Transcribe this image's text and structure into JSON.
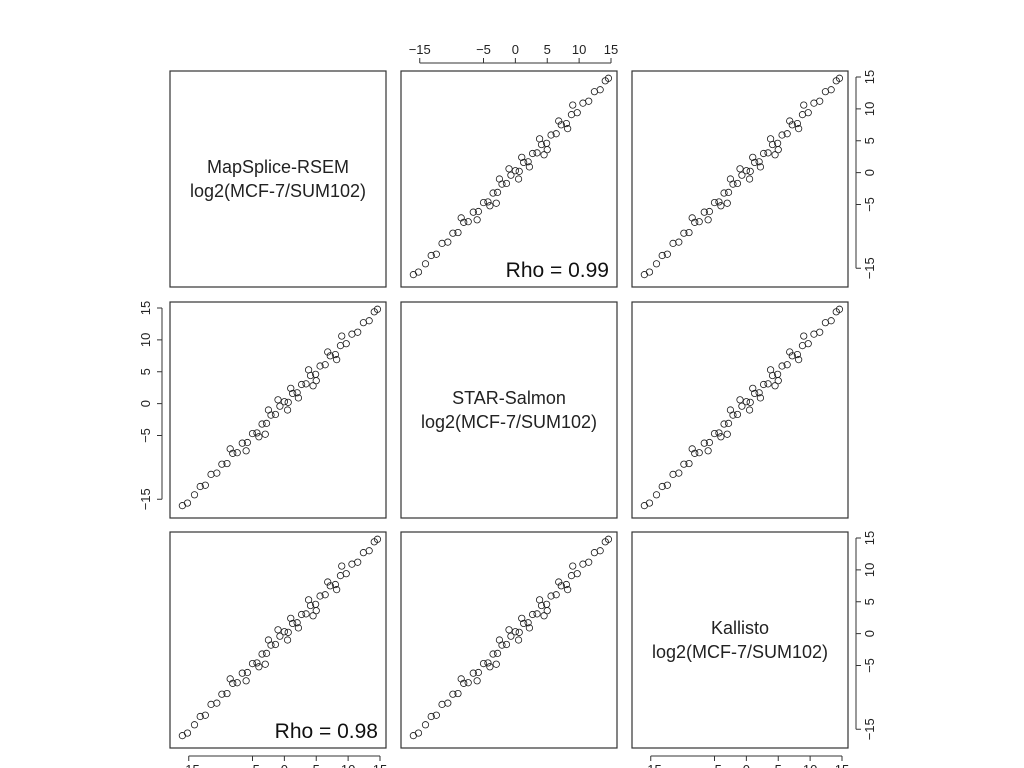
{
  "chart_data": {
    "type": "scatter",
    "layout": "pairs-matrix",
    "variables": [
      {
        "name": "MapSplice-RSEM",
        "unit": "log2(MCF-7/SUM102)"
      },
      {
        "name": "STAR-Salmon",
        "unit": "log2(MCF-7/SUM102)"
      },
      {
        "name": "Kallisto",
        "unit": "log2(MCF-7/SUM102)"
      }
    ],
    "axis_range": [
      -17,
      15
    ],
    "ticks": [
      -15,
      -5,
      0,
      5,
      10,
      15
    ],
    "tick_labels": [
      "−15",
      "−5",
      "0",
      "5",
      "10",
      "15"
    ],
    "correlations": [
      {
        "x": "STAR-Salmon",
        "y": "MapSplice-RSEM",
        "label": "Rho = 0.99"
      },
      {
        "x": "MapSplice-RSEM",
        "y": "Kallisto",
        "label": "Rho = 0.98"
      }
    ],
    "scatter_points": [
      [
        -16,
        -16
      ],
      [
        -15.2,
        -15.6
      ],
      [
        -14.1,
        -14.3
      ],
      [
        -13.2,
        -13.0
      ],
      [
        -12.4,
        -12.8
      ],
      [
        -11.5,
        -11.1
      ],
      [
        -10.6,
        -10.9
      ],
      [
        -9.8,
        -9.5
      ],
      [
        -9.0,
        -9.4
      ],
      [
        -8.1,
        -7.8
      ],
      [
        -7.4,
        -7.7
      ],
      [
        -6.6,
        -6.2
      ],
      [
        -5.8,
        -6.1
      ],
      [
        -5.0,
        -4.7
      ],
      [
        -4.3,
        -4.6
      ],
      [
        -3.5,
        -3.2
      ],
      [
        -2.8,
        -3.1
      ],
      [
        -2.1,
        -1.8
      ],
      [
        -1.4,
        -1.7
      ],
      [
        -0.7,
        -0.4
      ],
      [
        0.0,
        0.3
      ],
      [
        0.6,
        0.2
      ],
      [
        1.3,
        1.6
      ],
      [
        2.0,
        1.7
      ],
      [
        2.7,
        3.0
      ],
      [
        3.4,
        3.1
      ],
      [
        4.1,
        4.4
      ],
      [
        4.9,
        4.6
      ],
      [
        5.6,
        5.9
      ],
      [
        6.4,
        6.1
      ],
      [
        7.2,
        7.5
      ],
      [
        8.0,
        7.7
      ],
      [
        8.8,
        9.1
      ],
      [
        9.7,
        9.4
      ],
      [
        10.6,
        10.9
      ],
      [
        11.5,
        11.2
      ],
      [
        12.4,
        12.7
      ],
      [
        13.3,
        13.0
      ],
      [
        14.1,
        14.4
      ],
      [
        14.6,
        14.8
      ],
      [
        -4.0,
        -5.2
      ],
      [
        -2.5,
        -1.0
      ],
      [
        1.0,
        2.4
      ],
      [
        2.2,
        0.9
      ],
      [
        3.8,
        5.3
      ],
      [
        5.0,
        3.6
      ],
      [
        -6.0,
        -7.4
      ],
      [
        -8.5,
        -7.1
      ],
      [
        6.8,
        8.1
      ],
      [
        8.2,
        6.9
      ],
      [
        0.5,
        -1.0
      ],
      [
        -1.0,
        0.6
      ],
      [
        4.5,
        2.8
      ],
      [
        -3.0,
        -4.8
      ],
      [
        9.0,
        10.6
      ]
    ]
  }
}
